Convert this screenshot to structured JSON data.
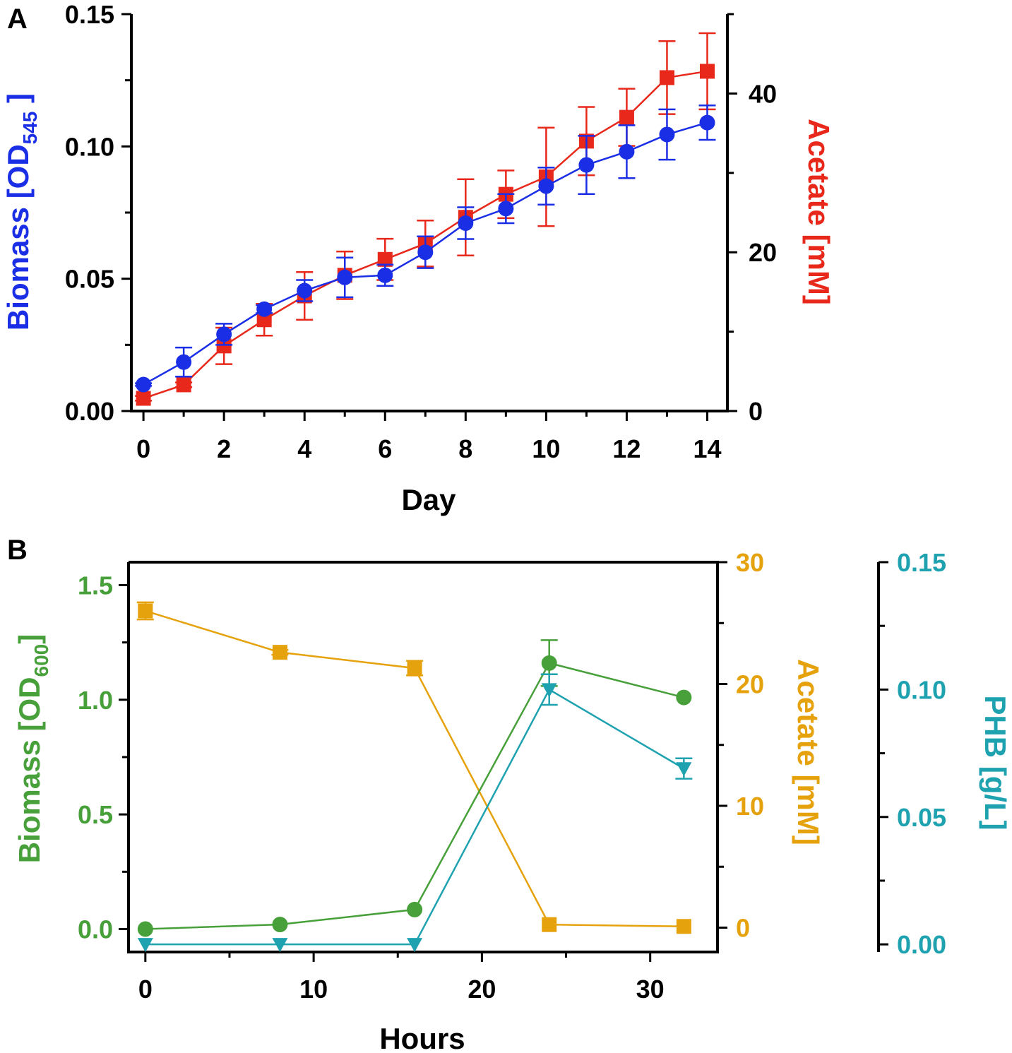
{
  "chart_data": [
    {
      "panel_label": "A",
      "type": "line",
      "xlabel": "Day",
      "xlim": [
        -0.3,
        14.5
      ],
      "x_ticks": [
        0,
        2,
        4,
        6,
        8,
        10,
        12,
        14
      ],
      "x_minor_ticks": [
        1,
        3,
        5,
        7,
        9,
        11,
        13
      ],
      "y_left": {
        "label_main": "Biomass [OD",
        "label_sub": "545",
        "label_end": " ]",
        "color": "#1a2ee6",
        "ylim": [
          0,
          0.15
        ],
        "ticks": [
          "0.00",
          "0.05",
          "0.10",
          "0.15"
        ],
        "minor_ticks": [
          0.025,
          0.075,
          0.125
        ]
      },
      "y_right": {
        "label": "Acetate [mM]",
        "color": "#e8281a",
        "ylim": [
          0,
          50
        ],
        "ticks": [
          "0",
          "20",
          "40"
        ],
        "minor_ticks": [
          10,
          30,
          50
        ]
      },
      "series": [
        {
          "name": "Biomass",
          "axis": "left",
          "marker": "circle",
          "color": "#1a2ee6",
          "x": [
            0,
            1,
            2,
            3,
            4,
            5,
            6,
            7,
            8,
            9,
            10,
            11,
            12,
            13,
            14
          ],
          "y": [
            0.01,
            0.0185,
            0.029,
            0.0385,
            0.0455,
            0.0505,
            0.0513,
            0.06,
            0.071,
            0.0765,
            0.085,
            0.093,
            0.098,
            0.1045,
            0.109
          ],
          "err": [
            0.0005,
            0.0055,
            0.004,
            0.0015,
            0.004,
            0.0075,
            0.004,
            0.006,
            0.006,
            0.0055,
            0.007,
            0.011,
            0.01,
            0.0095,
            0.0065
          ]
        },
        {
          "name": "Acetate",
          "axis": "right",
          "marker": "square",
          "color": "#e8281a",
          "x": [
            0,
            1,
            2,
            3,
            4,
            5,
            6,
            7,
            8,
            9,
            10,
            11,
            12,
            13,
            14
          ],
          "y": [
            1.6,
            3.3,
            8.2,
            11.5,
            14.5,
            17.1,
            19.1,
            21.1,
            24.4,
            27.3,
            29.5,
            34.0,
            37.0,
            42.0,
            42.8
          ],
          "err": [
            0.3,
            0.3,
            2.3,
            2.0,
            3.0,
            3.0,
            2.6,
            2.9,
            4.8,
            3.0,
            6.2,
            4.3,
            3.6,
            4.6,
            4.8
          ]
        }
      ]
    },
    {
      "panel_label": "B",
      "type": "line",
      "xlabel": "Hours",
      "xlim": [
        -1,
        34
      ],
      "x_ticks": [
        0,
        10,
        20,
        30
      ],
      "x_minor_ticks": [
        5,
        15,
        25
      ],
      "y_left": {
        "label_main": "Biomass [OD",
        "label_sub": "600",
        "label_end": "]",
        "color": "#47a03a",
        "ylim": [
          -0.1,
          1.6
        ],
        "ticks": [
          "0.0",
          "0.5",
          "1.0",
          "1.5"
        ],
        "minor_ticks": [
          0.25,
          0.75,
          1.25
        ]
      },
      "y_right": {
        "label": "Acetate [mM]",
        "color": "#e6a20c",
        "ylim": [
          -2,
          30
        ],
        "ticks": [
          "0",
          "10",
          "20",
          "30"
        ],
        "minor_ticks": [
          5,
          15,
          25
        ]
      },
      "y_right2": {
        "label": "PHB [g/L]",
        "color": "#1fa2b0",
        "ylim": [
          -0.003,
          0.15
        ],
        "ticks": [
          "0.00",
          "0.05",
          "0.10",
          "0.15"
        ],
        "minor_ticks": [
          0.025,
          0.075,
          0.125
        ]
      },
      "series": [
        {
          "name": "Biomass",
          "axis": "left",
          "marker": "circle",
          "color": "#47a03a",
          "x": [
            0,
            8,
            16,
            24,
            32
          ],
          "y": [
            0.0,
            0.02,
            0.085,
            1.16,
            1.01
          ],
          "err": [
            0,
            0,
            0,
            0.1,
            0
          ]
        },
        {
          "name": "Acetate",
          "axis": "right",
          "marker": "square",
          "color": "#e6a20c",
          "x": [
            0,
            8,
            16,
            24,
            32
          ],
          "y": [
            26.0,
            22.6,
            21.3,
            0.25,
            0.1
          ],
          "err": [
            0.7,
            0.2,
            0.6,
            0,
            0
          ]
        },
        {
          "name": "PHB",
          "axis": "right2",
          "marker": "triangle-down",
          "color": "#1fa2b0",
          "x": [
            0,
            8,
            16,
            24,
            32
          ],
          "y": [
            0.0,
            0.0,
            0.0,
            0.1,
            0.069
          ],
          "err": [
            0,
            0,
            0,
            0.006,
            0.004
          ]
        }
      ]
    }
  ]
}
